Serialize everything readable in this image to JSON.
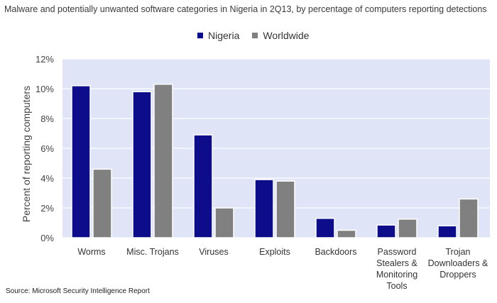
{
  "chart_data": {
    "type": "bar",
    "title": "Malware and potentially unwanted software categories in Nigeria in 2Q13, by percentage of computers reporting detections",
    "ylabel": "Percent of reporting computers",
    "xlabel": "",
    "categories": [
      [
        "Worms"
      ],
      [
        "Misc. Trojans"
      ],
      [
        "Viruses"
      ],
      [
        "Exploits"
      ],
      [
        "Backdoors"
      ],
      [
        "Password",
        "Stealers &",
        "Monitoring",
        "Tools"
      ],
      [
        "Trojan",
        "Downloaders &",
        "Droppers"
      ]
    ],
    "series": [
      {
        "name": "Nigeria",
        "color": "#0d0d8c",
        "values": [
          10.2,
          9.8,
          6.9,
          3.9,
          1.3,
          0.85,
          0.8
        ]
      },
      {
        "name": "Worldwide",
        "color": "#808080",
        "values": [
          4.6,
          10.3,
          2.0,
          3.8,
          0.5,
          1.25,
          2.6
        ]
      }
    ],
    "ylim": [
      0,
      12
    ],
    "yticks": [
      "0%",
      "2%",
      "4%",
      "6%",
      "8%",
      "10%",
      "12%"
    ],
    "ytick_values": [
      0,
      2,
      4,
      6,
      8,
      10,
      12
    ],
    "legend_position": "top-center",
    "plot_background": "#dfe5f6",
    "grid": true
  },
  "source": "Source: Microsoft Security Intelligence Report"
}
